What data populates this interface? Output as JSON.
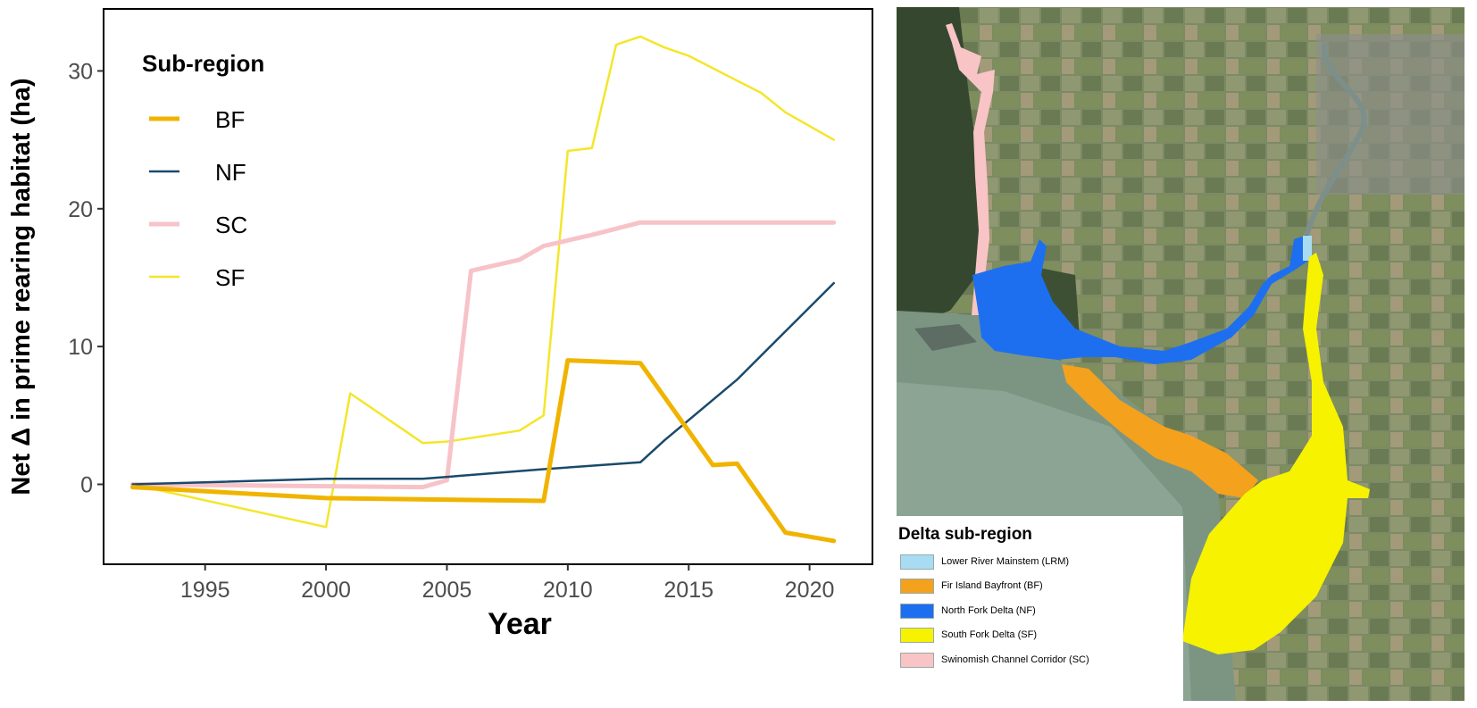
{
  "chart_data": {
    "type": "line",
    "xlabel": "Year",
    "ylabel": "Net Δ in prime rearing habitat (ha)",
    "xlim": [
      1990.8,
      2022.6
    ],
    "ylim": [
      -5.8,
      34.5
    ],
    "x_ticks": [
      1995,
      2000,
      2005,
      2010,
      2015,
      2020
    ],
    "y_ticks": [
      0,
      10,
      20,
      30
    ],
    "grid": false,
    "legend_title": "Sub-region",
    "legend_position": "top-left",
    "series": [
      {
        "name": "BF",
        "color": "#f0b400",
        "x": [
          1992,
          2000,
          2009,
          2010,
          2013,
          2016,
          2017,
          2019,
          2021
        ],
        "y": [
          -0.2,
          -1.0,
          -1.2,
          9.0,
          8.8,
          1.4,
          1.5,
          -3.5,
          -4.1
        ]
      },
      {
        "name": "NF",
        "color": "#1a4a6b",
        "x": [
          1992,
          2000,
          2004,
          2009,
          2013,
          2014,
          2017,
          2021
        ],
        "y": [
          0.0,
          0.4,
          0.4,
          1.1,
          1.6,
          3.2,
          7.6,
          14.6
        ]
      },
      {
        "name": "SC",
        "color": "#f7c3c8",
        "x": [
          1992,
          2004,
          2005,
          2006,
          2008,
          2009,
          2011,
          2013,
          2021
        ],
        "y": [
          0.0,
          -0.2,
          0.3,
          15.5,
          16.3,
          17.3,
          18.1,
          19.0,
          19.0
        ]
      },
      {
        "name": "SF",
        "color": "#f4e62a",
        "x": [
          1992,
          2000,
          2001,
          2004,
          2005,
          2008,
          2009,
          2010,
          2011,
          2012,
          2013,
          2014,
          2015,
          2016,
          2017,
          2018,
          2019,
          2020,
          2021
        ],
        "y": [
          0.0,
          -3.1,
          6.6,
          3.0,
          3.1,
          3.9,
          5.0,
          24.2,
          24.4,
          31.9,
          32.5,
          31.7,
          31.1,
          30.2,
          29.3,
          28.4,
          27.0,
          26.0,
          25.0
        ]
      }
    ]
  },
  "map": {
    "legend_title": "Delta sub-region",
    "legend_items": [
      {
        "label": "Lower River Mainstem (LRM)",
        "color": "#a8dcf2"
      },
      {
        "label": "Fir Island Bayfront (BF)",
        "color": "#f4a11e"
      },
      {
        "label": "North Fork Delta (NF)",
        "color": "#1e6ff0"
      },
      {
        "label": "South Fork Delta (SF)",
        "color": "#f7f200"
      },
      {
        "label": "Swinomish Channel Corridor (SC)",
        "color": "#f8c4c6"
      }
    ]
  }
}
